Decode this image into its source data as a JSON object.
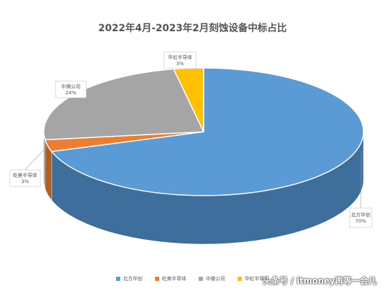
{
  "chart_data": {
    "type": "pie",
    "title": "2022年4月-2023年2月刻蚀设备中标占比",
    "slices": [
      {
        "name": "北方华创",
        "value": 70,
        "label": "70%",
        "color": "#5B9BD5",
        "side": "#3E6E9C"
      },
      {
        "name": "屹美半导体",
        "value": 3,
        "label": "3%",
        "color": "#ED7D31",
        "side": "#B65E22"
      },
      {
        "name": "中微公司",
        "value": 24,
        "label": "24%",
        "color": "#A5A5A5",
        "side": "#7A7A7A"
      },
      {
        "name": "华虹半导体",
        "value": 3,
        "label": "3%",
        "color": "#FFC000",
        "side": "#C29200"
      }
    ],
    "legend_position": "bottom"
  },
  "watermark": "头条号 / itmoney再等一会儿"
}
